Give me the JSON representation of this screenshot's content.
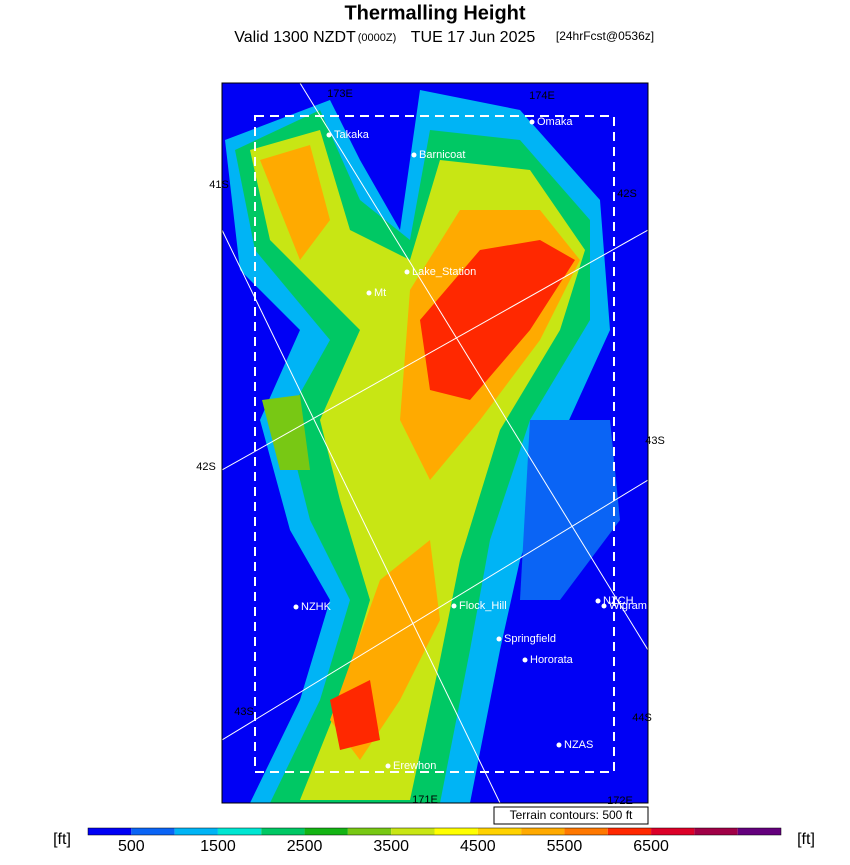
{
  "title": "Thermalling Height",
  "subtitle": {
    "valid": "Valid 1300 NZDT",
    "zulu": "(0000Z)",
    "date": "TUE 17 Jun 2025",
    "forecast": "[24hrFcst@0536z]"
  },
  "places": [
    "Takaka",
    "Omaka",
    "Barnicoat",
    "Lake_Station",
    "Mt",
    "NZHK",
    "Flock_Hill",
    "NZCH",
    "Wigram",
    "Springfield",
    "Hororata",
    "NZAS",
    "Erewhon"
  ],
  "grid_labels": [
    "173E",
    "174E",
    "41S",
    "42S",
    "42S",
    "43S",
    "43S",
    "44S",
    "171E",
    "172E"
  ],
  "terrain_note": "Terrain contours: 500 ft",
  "colorbar": {
    "unit_left": "[ft]",
    "unit_right": "[ft]",
    "colors": [
      "#0000f5",
      "#0a64f5",
      "#00b4f5",
      "#00e6d2",
      "#00c864",
      "#14b414",
      "#78c814",
      "#c8e614",
      "#ffff00",
      "#ffd200",
      "#ffaa00",
      "#ff7800",
      "#ff2800",
      "#dc0028",
      "#a00046",
      "#64007d"
    ],
    "labels": [
      "500",
      "1500",
      "2500",
      "3500",
      "4500",
      "5500",
      "6500"
    ]
  }
}
